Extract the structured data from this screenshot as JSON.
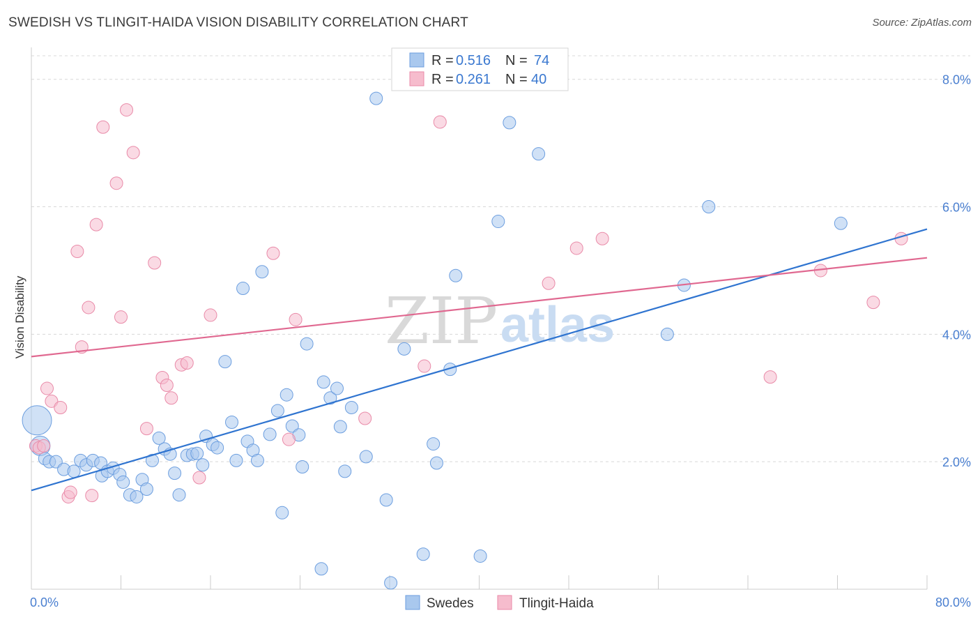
{
  "title": "SWEDISH VS TLINGIT-HAIDA VISION DISABILITY CORRELATION CHART",
  "source": "Source: ZipAtlas.com",
  "watermark": {
    "zip": "ZIP",
    "atlas": "atlas"
  },
  "colors": {
    "blue_fill": "#a9c8ee",
    "blue_stroke": "#6c9edf",
    "blue_line": "#2f74d0",
    "pink_fill": "#f6bccd",
    "pink_stroke": "#e98aa8",
    "pink_line": "#e06890",
    "tick_label": "#4a7fd0",
    "grid": "#d8d8d8"
  },
  "legend": {
    "r_label": "R =",
    "n_label": "N =",
    "items": [
      {
        "r": "0.516",
        "n": "74"
      },
      {
        "r": "0.261",
        "n": "40"
      }
    ]
  },
  "chart_data": {
    "type": "scatter",
    "title": "SWEDISH VS TLINGIT-HAIDA VISION DISABILITY CORRELATION CHART",
    "xlabel": "",
    "ylabel": "Vision Disability",
    "xlim": [
      0,
      80
    ],
    "ylim": [
      0,
      8.5
    ],
    "x_tick_labels": [
      "0.0%",
      "80.0%"
    ],
    "y_ticks": [
      2,
      4,
      6,
      8
    ],
    "y_tick_labels": [
      "2.0%",
      "4.0%",
      "6.0%",
      "8.0%"
    ],
    "grid": "horizontal dashed",
    "legend_position": "top-center and bottom-center",
    "series": [
      {
        "name": "Swedes",
        "r": 0.516,
        "n": 74,
        "trend": {
          "x": [
            0,
            80
          ],
          "y": [
            1.55,
            5.65
          ]
        },
        "points": [
          {
            "x": 0.5,
            "y": 2.65,
            "s": 3
          },
          {
            "x": 0.8,
            "y": 2.25,
            "s": 2
          },
          {
            "x": 1.2,
            "y": 2.05,
            "s": 1
          },
          {
            "x": 1.6,
            "y": 2.0,
            "s": 1
          },
          {
            "x": 2.2,
            "y": 2.0,
            "s": 1
          },
          {
            "x": 2.9,
            "y": 1.88,
            "s": 1
          },
          {
            "x": 3.8,
            "y": 1.85,
            "s": 1
          },
          {
            "x": 4.4,
            "y": 2.02,
            "s": 1
          },
          {
            "x": 4.9,
            "y": 1.95,
            "s": 1
          },
          {
            "x": 5.5,
            "y": 2.02,
            "s": 1
          },
          {
            "x": 6.2,
            "y": 1.98,
            "s": 1
          },
          {
            "x": 6.3,
            "y": 1.78,
            "s": 1
          },
          {
            "x": 6.8,
            "y": 1.85,
            "s": 1
          },
          {
            "x": 7.3,
            "y": 1.9,
            "s": 1
          },
          {
            "x": 7.9,
            "y": 1.8,
            "s": 1
          },
          {
            "x": 8.2,
            "y": 1.68,
            "s": 1
          },
          {
            "x": 8.8,
            "y": 1.48,
            "s": 1
          },
          {
            "x": 9.4,
            "y": 1.45,
            "s": 1
          },
          {
            "x": 9.9,
            "y": 1.72,
            "s": 1
          },
          {
            "x": 10.3,
            "y": 1.57,
            "s": 1
          },
          {
            "x": 10.8,
            "y": 2.02,
            "s": 1
          },
          {
            "x": 11.4,
            "y": 2.37,
            "s": 1
          },
          {
            "x": 11.9,
            "y": 2.2,
            "s": 1
          },
          {
            "x": 12.4,
            "y": 2.12,
            "s": 1
          },
          {
            "x": 12.8,
            "y": 1.82,
            "s": 1
          },
          {
            "x": 13.2,
            "y": 1.48,
            "s": 1
          },
          {
            "x": 13.9,
            "y": 2.1,
            "s": 1
          },
          {
            "x": 14.4,
            "y": 2.12,
            "s": 1
          },
          {
            "x": 14.8,
            "y": 2.13,
            "s": 1
          },
          {
            "x": 15.3,
            "y": 1.95,
            "s": 1
          },
          {
            "x": 15.6,
            "y": 2.4,
            "s": 1
          },
          {
            "x": 16.2,
            "y": 2.27,
            "s": 1
          },
          {
            "x": 16.6,
            "y": 2.22,
            "s": 1
          },
          {
            "x": 17.3,
            "y": 3.57,
            "s": 1
          },
          {
            "x": 17.9,
            "y": 2.62,
            "s": 1
          },
          {
            "x": 18.3,
            "y": 2.02,
            "s": 1
          },
          {
            "x": 18.9,
            "y": 4.72,
            "s": 1
          },
          {
            "x": 19.3,
            "y": 2.32,
            "s": 1
          },
          {
            "x": 19.8,
            "y": 2.18,
            "s": 1
          },
          {
            "x": 20.2,
            "y": 2.02,
            "s": 1
          },
          {
            "x": 20.6,
            "y": 4.98,
            "s": 1
          },
          {
            "x": 21.3,
            "y": 2.43,
            "s": 1
          },
          {
            "x": 22.0,
            "y": 2.8,
            "s": 1
          },
          {
            "x": 22.4,
            "y": 1.2,
            "s": 1
          },
          {
            "x": 22.8,
            "y": 3.05,
            "s": 1
          },
          {
            "x": 23.3,
            "y": 2.56,
            "s": 1
          },
          {
            "x": 23.9,
            "y": 2.42,
            "s": 1
          },
          {
            "x": 24.2,
            "y": 1.92,
            "s": 1
          },
          {
            "x": 24.6,
            "y": 3.85,
            "s": 1
          },
          {
            "x": 25.9,
            "y": 0.32,
            "s": 1
          },
          {
            "x": 26.1,
            "y": 3.25,
            "s": 1
          },
          {
            "x": 26.7,
            "y": 3.0,
            "s": 1
          },
          {
            "x": 27.3,
            "y": 3.15,
            "s": 1
          },
          {
            "x": 27.6,
            "y": 2.55,
            "s": 1
          },
          {
            "x": 28.0,
            "y": 1.85,
            "s": 1
          },
          {
            "x": 28.6,
            "y": 2.85,
            "s": 1
          },
          {
            "x": 29.9,
            "y": 2.08,
            "s": 1
          },
          {
            "x": 30.8,
            "y": 7.7,
            "s": 1
          },
          {
            "x": 31.7,
            "y": 1.4,
            "s": 1
          },
          {
            "x": 32.1,
            "y": 0.1,
            "s": 1
          },
          {
            "x": 33.3,
            "y": 3.77,
            "s": 1
          },
          {
            "x": 35.0,
            "y": 0.55,
            "s": 1
          },
          {
            "x": 35.9,
            "y": 2.28,
            "s": 1
          },
          {
            "x": 36.2,
            "y": 1.98,
            "s": 1
          },
          {
            "x": 37.4,
            "y": 3.45,
            "s": 1
          },
          {
            "x": 37.9,
            "y": 4.92,
            "s": 1
          },
          {
            "x": 40.1,
            "y": 0.52,
            "s": 1
          },
          {
            "x": 41.7,
            "y": 5.77,
            "s": 1
          },
          {
            "x": 42.7,
            "y": 7.32,
            "s": 1
          },
          {
            "x": 45.3,
            "y": 6.83,
            "s": 1
          },
          {
            "x": 58.3,
            "y": 4.77,
            "s": 1
          },
          {
            "x": 60.5,
            "y": 6.0,
            "s": 1
          },
          {
            "x": 72.3,
            "y": 5.74,
            "s": 1
          },
          {
            "x": 56.8,
            "y": 4.0,
            "s": 1
          }
        ]
      },
      {
        "name": "Tlingit-Haida",
        "r": 0.261,
        "n": 40,
        "trend": {
          "x": [
            0,
            80
          ],
          "y": [
            3.65,
            5.2
          ]
        },
        "points": [
          {
            "x": 0.4,
            "y": 2.25,
            "s": 1
          },
          {
            "x": 0.7,
            "y": 2.22,
            "s": 1
          },
          {
            "x": 1.1,
            "y": 2.25,
            "s": 1
          },
          {
            "x": 1.4,
            "y": 3.15,
            "s": 1
          },
          {
            "x": 1.8,
            "y": 2.95,
            "s": 1
          },
          {
            "x": 2.6,
            "y": 2.85,
            "s": 1
          },
          {
            "x": 3.3,
            "y": 1.45,
            "s": 1
          },
          {
            "x": 3.5,
            "y": 1.52,
            "s": 1
          },
          {
            "x": 4.1,
            "y": 5.3,
            "s": 1
          },
          {
            "x": 4.5,
            "y": 3.8,
            "s": 1
          },
          {
            "x": 5.1,
            "y": 4.42,
            "s": 1
          },
          {
            "x": 5.4,
            "y": 1.47,
            "s": 1
          },
          {
            "x": 5.8,
            "y": 5.72,
            "s": 1
          },
          {
            "x": 6.4,
            "y": 7.25,
            "s": 1
          },
          {
            "x": 7.6,
            "y": 6.37,
            "s": 1
          },
          {
            "x": 8.0,
            "y": 4.27,
            "s": 1
          },
          {
            "x": 8.5,
            "y": 7.52,
            "s": 1
          },
          {
            "x": 9.1,
            "y": 6.85,
            "s": 1
          },
          {
            "x": 10.3,
            "y": 2.52,
            "s": 1
          },
          {
            "x": 11.0,
            "y": 5.12,
            "s": 1
          },
          {
            "x": 11.7,
            "y": 3.32,
            "s": 1
          },
          {
            "x": 12.1,
            "y": 3.2,
            "s": 1
          },
          {
            "x": 12.5,
            "y": 3.0,
            "s": 1
          },
          {
            "x": 13.4,
            "y": 3.52,
            "s": 1
          },
          {
            "x": 13.9,
            "y": 3.55,
            "s": 1
          },
          {
            "x": 15.0,
            "y": 1.75,
            "s": 1
          },
          {
            "x": 16.0,
            "y": 4.3,
            "s": 1
          },
          {
            "x": 21.6,
            "y": 5.27,
            "s": 1
          },
          {
            "x": 23.0,
            "y": 2.35,
            "s": 1
          },
          {
            "x": 23.6,
            "y": 4.23,
            "s": 1
          },
          {
            "x": 29.8,
            "y": 2.68,
            "s": 1
          },
          {
            "x": 36.5,
            "y": 7.33,
            "s": 1
          },
          {
            "x": 35.1,
            "y": 3.5,
            "s": 1
          },
          {
            "x": 46.2,
            "y": 4.8,
            "s": 1
          },
          {
            "x": 48.7,
            "y": 5.35,
            "s": 1
          },
          {
            "x": 51.0,
            "y": 5.5,
            "s": 1
          },
          {
            "x": 66.0,
            "y": 3.33,
            "s": 1
          },
          {
            "x": 70.5,
            "y": 5.0,
            "s": 1
          },
          {
            "x": 75.2,
            "y": 4.5,
            "s": 1
          },
          {
            "x": 77.7,
            "y": 5.5,
            "s": 1
          }
        ]
      }
    ]
  }
}
